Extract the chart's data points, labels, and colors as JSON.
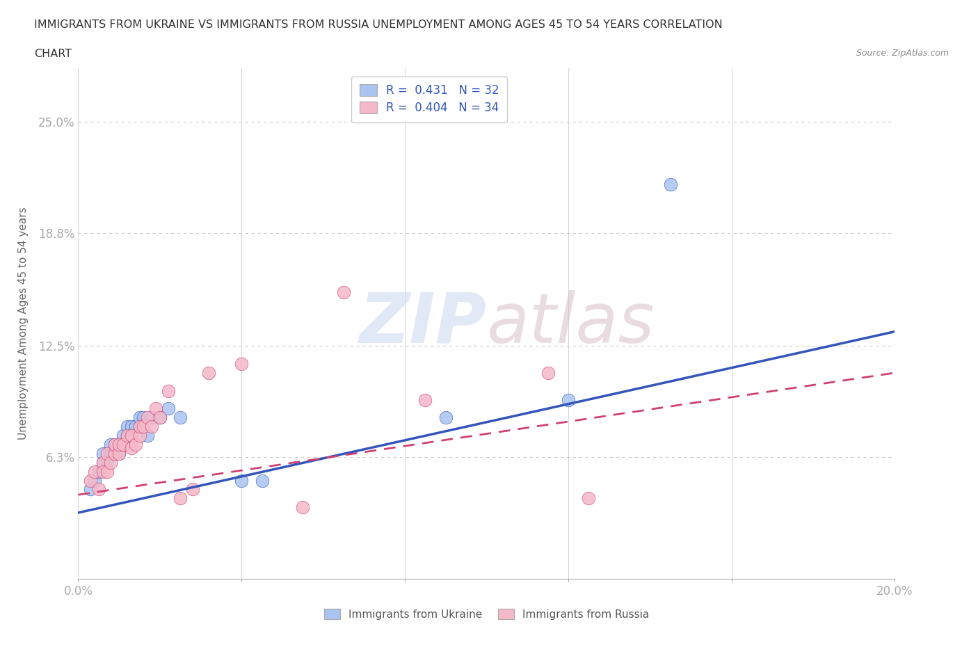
{
  "title_line1": "IMMIGRANTS FROM UKRAINE VS IMMIGRANTS FROM RUSSIA UNEMPLOYMENT AMONG AGES 45 TO 54 YEARS CORRELATION",
  "title_line2": "CHART",
  "source_text": "Source: ZipAtlas.com",
  "ylabel": "Unemployment Among Ages 45 to 54 years",
  "xlim": [
    0.0,
    0.2
  ],
  "ylim": [
    -0.005,
    0.28
  ],
  "yticks": [
    0.0,
    0.063,
    0.125,
    0.188,
    0.25
  ],
  "ytick_labels": [
    "",
    "6.3%",
    "12.5%",
    "18.8%",
    "25.0%"
  ],
  "xticks": [
    0.0,
    0.04,
    0.08,
    0.12,
    0.16,
    0.2
  ],
  "xtick_labels": [
    "0.0%",
    "",
    "",
    "",
    "",
    "20.0%"
  ],
  "ukraine_color": "#aac4f0",
  "russia_color": "#f5b8c8",
  "ukraine_line_color": "#3355bb",
  "russia_line_color": "#d04070",
  "ukraine_R": 0.431,
  "ukraine_N": 32,
  "russia_R": 0.404,
  "russia_N": 34,
  "ukraine_scatter_x": [
    0.003,
    0.004,
    0.005,
    0.006,
    0.006,
    0.007,
    0.008,
    0.008,
    0.009,
    0.009,
    0.01,
    0.01,
    0.011,
    0.011,
    0.012,
    0.012,
    0.013,
    0.013,
    0.014,
    0.015,
    0.015,
    0.016,
    0.017,
    0.018,
    0.02,
    0.022,
    0.025,
    0.04,
    0.045,
    0.09,
    0.12,
    0.145
  ],
  "ukraine_scatter_y": [
    0.045,
    0.05,
    0.055,
    0.06,
    0.065,
    0.06,
    0.065,
    0.07,
    0.065,
    0.07,
    0.065,
    0.07,
    0.07,
    0.075,
    0.075,
    0.08,
    0.075,
    0.08,
    0.08,
    0.08,
    0.085,
    0.085,
    0.075,
    0.085,
    0.085,
    0.09,
    0.085,
    0.05,
    0.05,
    0.085,
    0.095,
    0.215
  ],
  "russia_scatter_x": [
    0.003,
    0.004,
    0.005,
    0.006,
    0.006,
    0.007,
    0.007,
    0.008,
    0.009,
    0.009,
    0.01,
    0.01,
    0.011,
    0.012,
    0.013,
    0.013,
    0.014,
    0.015,
    0.015,
    0.016,
    0.017,
    0.018,
    0.019,
    0.02,
    0.022,
    0.025,
    0.028,
    0.032,
    0.04,
    0.055,
    0.065,
    0.085,
    0.115,
    0.125
  ],
  "russia_scatter_y": [
    0.05,
    0.055,
    0.045,
    0.06,
    0.055,
    0.055,
    0.065,
    0.06,
    0.065,
    0.07,
    0.065,
    0.07,
    0.07,
    0.075,
    0.068,
    0.075,
    0.07,
    0.075,
    0.08,
    0.08,
    0.085,
    0.08,
    0.09,
    0.085,
    0.1,
    0.04,
    0.045,
    0.11,
    0.115,
    0.035,
    0.155,
    0.095,
    0.11,
    0.04
  ],
  "ukraine_trend_x0": 0.0,
  "ukraine_trend_y0": 0.032,
  "ukraine_trend_x1": 0.2,
  "ukraine_trend_y1": 0.133,
  "russia_trend_x0": 0.0,
  "russia_trend_y0": 0.042,
  "russia_trend_x1": 0.2,
  "russia_trend_y1": 0.11,
  "watermark_zip": "ZIP",
  "watermark_atlas": "atlas",
  "background_color": "#ffffff",
  "grid_color": "#cccccc"
}
